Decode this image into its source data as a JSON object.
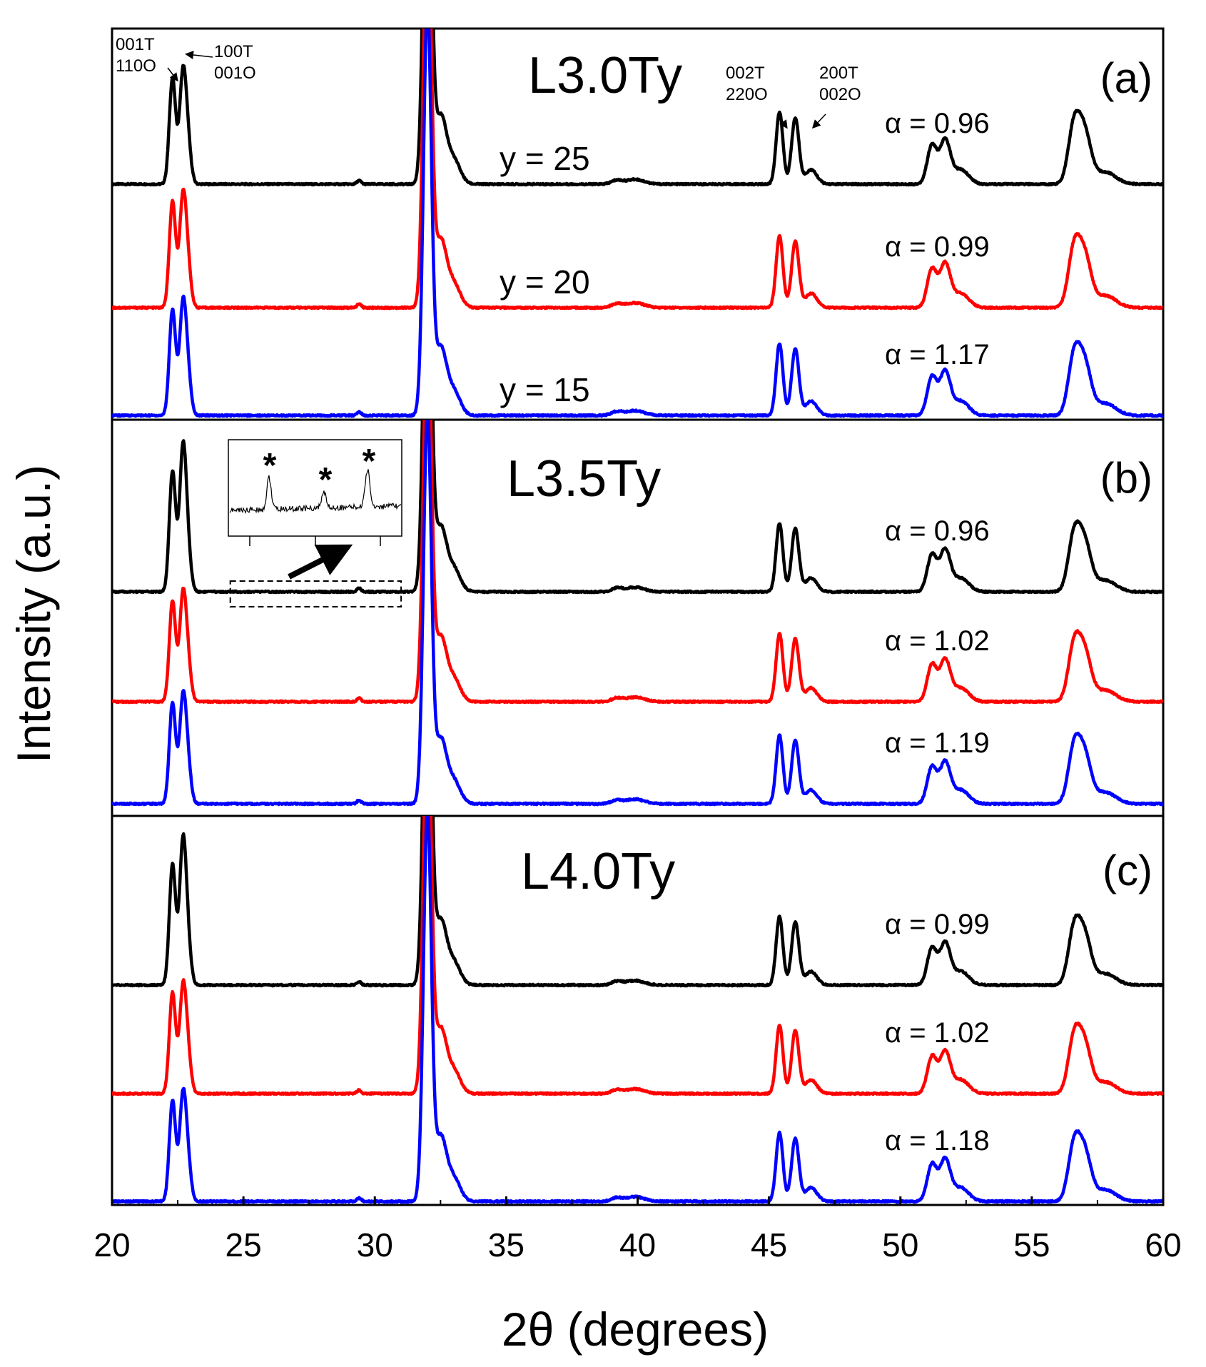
{
  "chart_data": {
    "type": "line",
    "xlabel": "2θ (degrees)",
    "ylabel": "Intensity (a.u.)",
    "xlim": [
      20,
      60
    ],
    "xticks": [
      "20",
      "25",
      "30",
      "35",
      "40",
      "45",
      "50",
      "55",
      "60"
    ],
    "colors": {
      "black": "#000000",
      "red": "#ff0000",
      "blue": "#0000ff"
    },
    "panels": [
      {
        "letter": "(a)",
        "title": "L3.0Ty",
        "series": [
          {
            "color": "black",
            "y_label": "y = 25",
            "alpha": "α = 0.96",
            "strong_second": false
          },
          {
            "color": "red",
            "y_label": "y = 20",
            "alpha": "α = 0.99",
            "strong_second": false
          },
          {
            "color": "blue",
            "y_label": "y = 15",
            "alpha": "α = 1.17",
            "strong_second": false
          }
        ],
        "peak_labels": {
          "p1": [
            "001T",
            "110O"
          ],
          "p2": [
            "100T",
            "001O"
          ],
          "p3": [
            "002T",
            "220O"
          ],
          "p4": [
            "200T",
            "002O"
          ]
        }
      },
      {
        "letter": "(b)",
        "title": "L3.5Ty",
        "series": [
          {
            "color": "black",
            "alpha": "α = 0.96",
            "strong_second": true
          },
          {
            "color": "red",
            "alpha": "α = 1.02",
            "strong_second": false
          },
          {
            "color": "blue",
            "alpha": "α = 1.19",
            "strong_second": false
          }
        ],
        "inset": {
          "markers": [
            "*",
            "*",
            "*"
          ],
          "x_range": [
            24.5,
            31
          ]
        }
      },
      {
        "letter": "(c)",
        "title": "L4.0Ty",
        "series": [
          {
            "color": "black",
            "alpha": "α = 0.99",
            "strong_second": true
          },
          {
            "color": "red",
            "alpha": "α = 1.02",
            "strong_second": false
          },
          {
            "color": "blue",
            "alpha": "α = 1.18",
            "strong_second": false
          }
        ]
      }
    ],
    "peaks_2theta": [
      22.3,
      22.7,
      29.4,
      32.0,
      32.5,
      39.2,
      39.9,
      45.4,
      46.0,
      46.6,
      51.2,
      51.7,
      52.3,
      56.6,
      57.0,
      57.8
    ]
  }
}
